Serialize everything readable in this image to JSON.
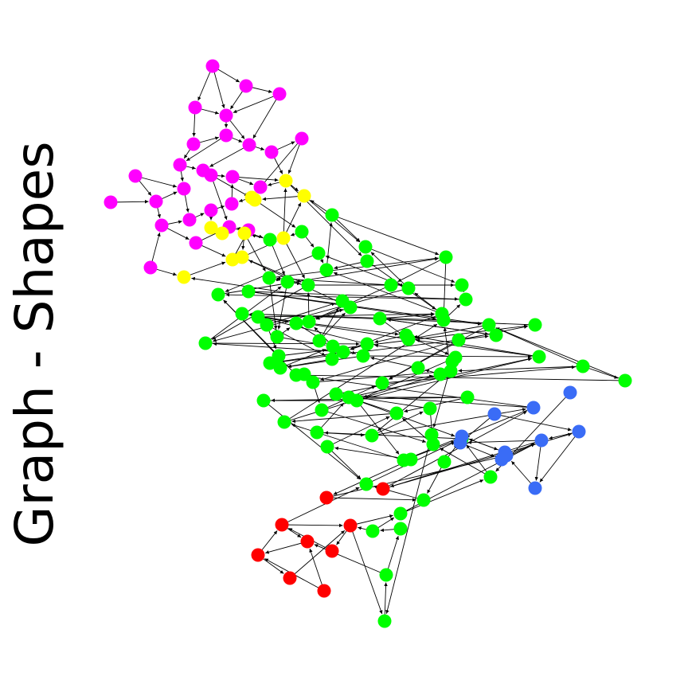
{
  "title": "Graph - Shapes",
  "colors": {
    "magenta": "#ff00ff",
    "yellow": "#ffff00",
    "green": "#00ff00",
    "blue": "#3a6cf6",
    "red": "#ff0000",
    "edge": "#000000"
  },
  "groups": [
    {
      "name": "magenta",
      "color": "#ff00ff",
      "count": 27
    },
    {
      "name": "yellow",
      "color": "#ffff00",
      "count": 11
    },
    {
      "name": "green",
      "color": "#00ff00",
      "count": 112
    },
    {
      "name": "blue",
      "color": "#3a6cf6",
      "count": 11
    },
    {
      "name": "red",
      "color": "#ff0000",
      "count": 9
    }
  ]
}
